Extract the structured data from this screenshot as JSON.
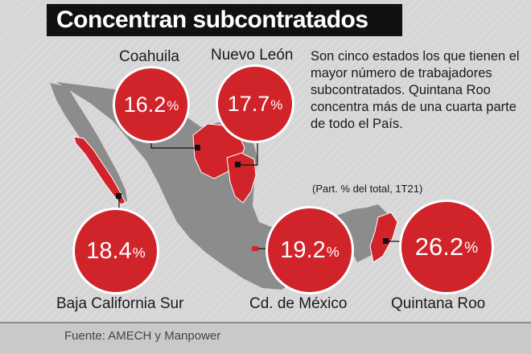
{
  "title": "Concentran subcontratados",
  "description": "Son cinco estados los que tienen el mayor número de trabajadores subcontratados. Quintana Roo concentra más de una cuarta parte de todo el País.",
  "note": "(Part. % del total, 1T21)",
  "source": "Fuente: AMECH y Manpower",
  "percent_symbol": "%",
  "colors": {
    "highlight": "#d1232a",
    "map": "#8c8c8c",
    "background": "#d6d6d6",
    "title_bar": "#111111"
  },
  "states": [
    {
      "name": "Coahuila",
      "value": "16.2",
      "share": 16.2
    },
    {
      "name": "Nuevo León",
      "value": "17.7",
      "share": 17.7
    },
    {
      "name": "Baja California Sur",
      "value": "18.4",
      "share": 18.4
    },
    {
      "name": "Cd. de México",
      "value": "19.2",
      "share": 19.2
    },
    {
      "name": "Quintana Roo",
      "value": "26.2",
      "share": 26.2
    }
  ]
}
